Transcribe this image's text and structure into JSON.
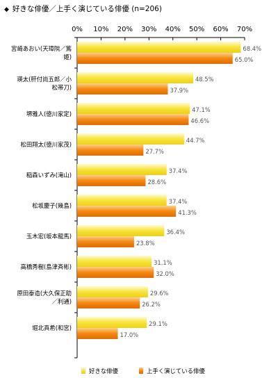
{
  "title": {
    "marker": "◆",
    "text": "好きな俳優／上手く演じている俳優 (n=206)"
  },
  "chart_data": {
    "type": "bar",
    "orientation": "horizontal",
    "title": "好きな俳優／上手く演じている俳優 (n=206)",
    "xlim": [
      0,
      70
    ],
    "x_ticks": [
      "0%",
      "10%",
      "20%",
      "30%",
      "40%",
      "50%",
      "60%",
      "70%"
    ],
    "grid": false,
    "legend_position": "bottom",
    "categories": [
      [
        "宮崎あおい(天璋院／篤",
        "姫)"
      ],
      [
        "瑛太(肝付尚五郎／小",
        "松帯刀)"
      ],
      [
        "堺雅人(徳川家定)"
      ],
      [
        "松田翔太(徳川家茂)"
      ],
      [
        "稲森いずみ(滝山)"
      ],
      [
        "松坂慶子(幾島)"
      ],
      [
        "玉木宏(坂本龍馬)"
      ],
      [
        "高橋秀樹(島津斉彬)"
      ],
      [
        "原田泰造(大久保正助",
        "／利通)"
      ],
      [
        "堀北真希(和宮)"
      ]
    ],
    "series": [
      {
        "name": "好きな俳優",
        "color": "#f9e84a",
        "values": [
          68.4,
          48.5,
          47.1,
          44.7,
          37.4,
          37.4,
          36.4,
          31.1,
          29.6,
          29.1
        ],
        "labels": [
          "68.4%",
          "48.5%",
          "47.1%",
          "44.7%",
          "37.4%",
          "37.4%",
          "36.4%",
          "31.1%",
          "29.6%",
          "29.1%"
        ]
      },
      {
        "name": "上手く演じている俳優",
        "color": "#f2820c",
        "values": [
          65.0,
          37.9,
          46.6,
          27.7,
          28.6,
          41.3,
          23.8,
          32.0,
          26.2,
          17.0
        ],
        "labels": [
          "65.0%",
          "37.9%",
          "46.6%",
          "27.7%",
          "28.6%",
          "41.3%",
          "23.8%",
          "32.0%",
          "26.2%",
          "17.0%"
        ]
      }
    ]
  }
}
